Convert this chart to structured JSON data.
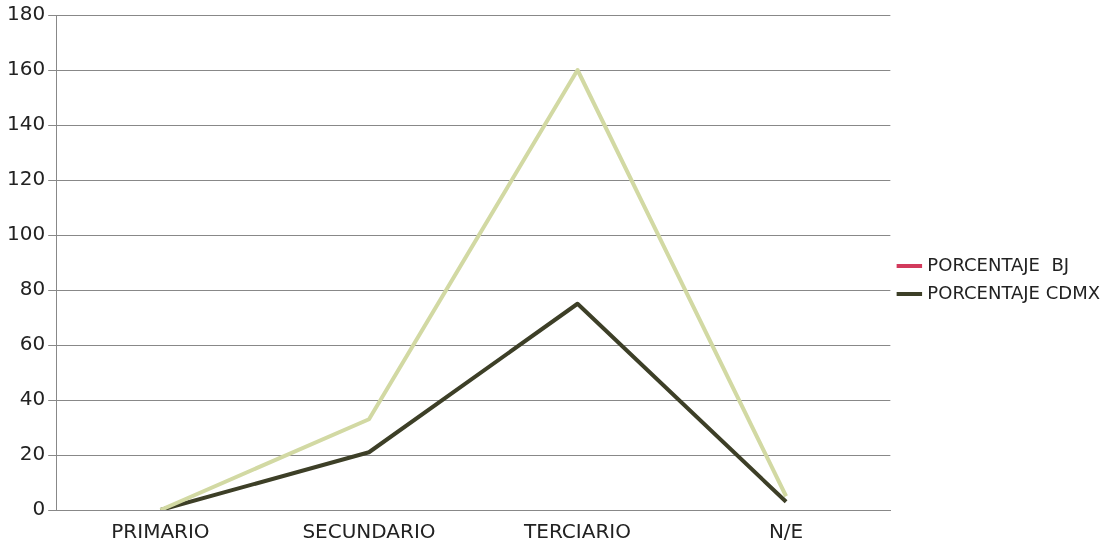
{
  "chart_data": {
    "type": "line",
    "categories": [
      "PRIMARIO",
      "SECUNDARIO",
      "TERCIARIO",
      "N/E"
    ],
    "series": [
      {
        "color": "#d2d9a3",
        "values": [
          0,
          33,
          160,
          5
        ]
      },
      {
        "name": "PORCENTAJE  BJ",
        "color": "#d23a5c",
        "values": [
          null,
          null,
          null,
          null
        ]
      },
      {
        "name": "PORCENTAJE CDMX",
        "color": "#3d3f27",
        "values": [
          0,
          21,
          75,
          3
        ]
      }
    ],
    "ylim": [
      0,
      180
    ],
    "yticks": [
      0,
      20,
      40,
      60,
      80,
      100,
      120,
      140,
      160,
      180
    ],
    "grid": "y",
    "legend": "right",
    "marker": "none"
  }
}
